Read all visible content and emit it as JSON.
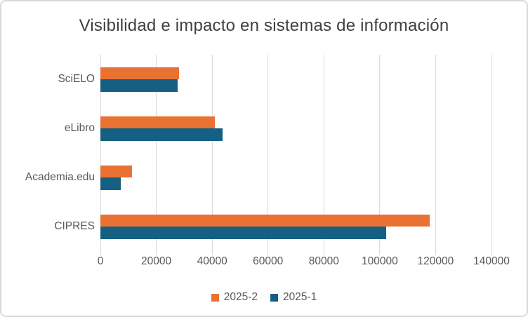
{
  "window": {
    "background": "#ffffff",
    "border_color": "#D9D9D9"
  },
  "chart_data": {
    "type": "bar",
    "orientation": "horizontal",
    "title": "Visibilidad e impacto en sistemas de información",
    "categories": [
      "SciELO",
      "eLibro",
      "Academia.edu",
      "CIPRES"
    ],
    "series": [
      {
        "name": "2025-2",
        "color": "#E97132",
        "values": [
          28200,
          40900,
          11300,
          117800
        ]
      },
      {
        "name": "2025-1",
        "color": "#156082",
        "values": [
          27600,
          43700,
          7200,
          102200
        ]
      }
    ],
    "x_axis": {
      "min": 0,
      "max": 140000,
      "tick_step": 20000,
      "tick_labels": [
        "0",
        "20000",
        "40000",
        "60000",
        "80000",
        "100000",
        "120000",
        "140000"
      ]
    },
    "y_axis_label": "",
    "xlabel": "",
    "ylabel": "",
    "legend": {
      "position": "bottom",
      "entries": [
        "2025-2",
        "2025-1"
      ]
    },
    "grid": true,
    "colors": {
      "gridline": "#D9D9D9",
      "axis_text": "#595959",
      "title_text": "#404040"
    }
  }
}
